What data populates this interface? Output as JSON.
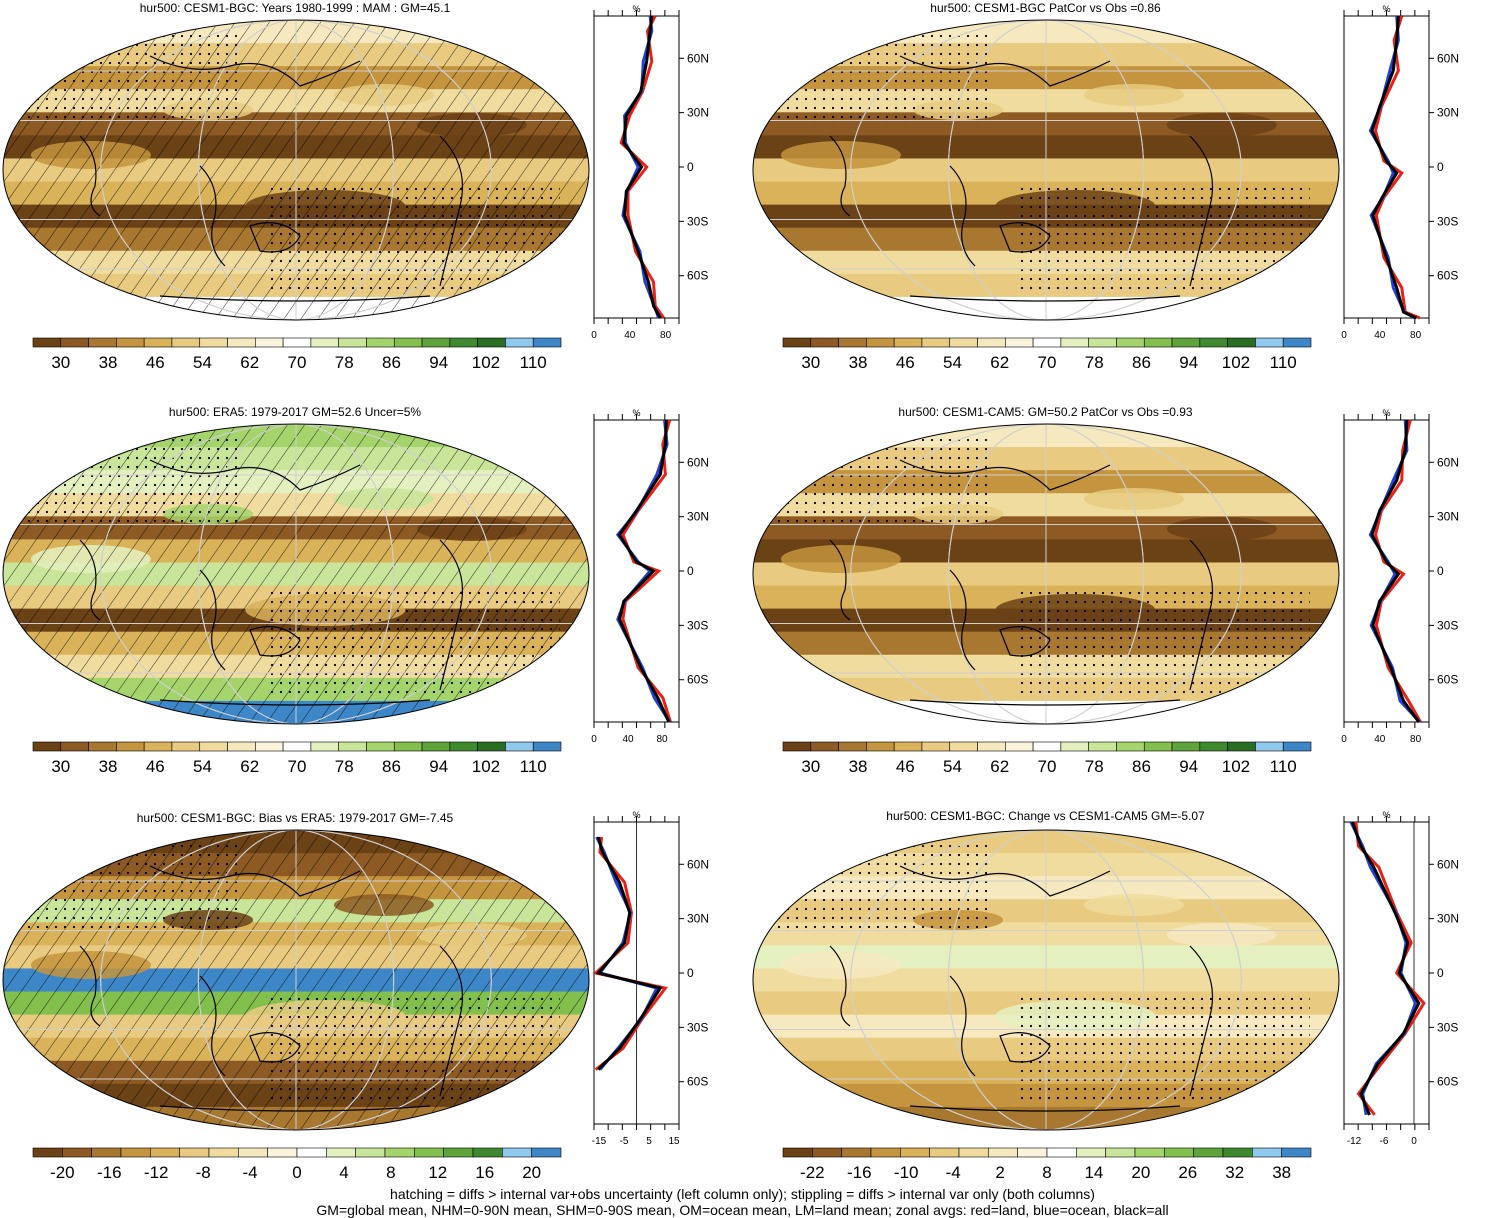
{
  "palettes": {
    "abs": [
      "#6b4116",
      "#8c5a22",
      "#a87730",
      "#c4943e",
      "#d9b25a",
      "#e8cb80",
      "#f0dc9e",
      "#f6e9bf",
      "#fbf4dd",
      "#ffffff",
      "#e4f0c0",
      "#c8e59a",
      "#a6d46c",
      "#82bf4c",
      "#5ea43a",
      "#3f8a2e",
      "#2a6e24",
      "#8fc9ee",
      "#3d86c8"
    ],
    "diff": [
      "#6b4116",
      "#8c5a22",
      "#a87730",
      "#c4943e",
      "#d9b25a",
      "#e8cb80",
      "#f0dc9e",
      "#f6e9bf",
      "#fbf4dd",
      "#ffffff",
      "#e4f0c0",
      "#c8e59a",
      "#a6d46c",
      "#82bf4c",
      "#5ea43a",
      "#3f8a2e",
      "#8fc9ee",
      "#3d86c8"
    ]
  },
  "panels": [
    {
      "id": "p1",
      "title": "hur500: CESM1-BGC: Years 1980-1999 : MAM : GM=45.1",
      "colorbar_labels": [
        "30",
        "38",
        "46",
        "54",
        "62",
        "70",
        "78",
        "86",
        "94",
        "102",
        "110"
      ],
      "zonal": {
        "unit": "%",
        "lat_labels": [
          "60N",
          "30N",
          "0",
          "30S",
          "60S"
        ],
        "x_labels": [
          "0",
          "40",
          "80"
        ],
        "xmin": 0,
        "xmax": 95,
        "zero_line": false
      }
    },
    {
      "id": "p2",
      "title": "hur500: CESM1-BGC PatCor vs Obs =0.86",
      "colorbar_labels": [
        "30",
        "38",
        "46",
        "54",
        "62",
        "70",
        "78",
        "86",
        "94",
        "102",
        "110"
      ],
      "zonal": {
        "unit": "%",
        "lat_labels": [
          "60N",
          "30N",
          "0",
          "30S",
          "60S"
        ],
        "x_labels": [
          "0",
          "40",
          "80"
        ],
        "xmin": 0,
        "xmax": 95,
        "zero_line": false
      }
    },
    {
      "id": "p3",
      "title": "hur500: ERA5: 1979-2017 GM=52.6 Uncer=5%",
      "colorbar_labels": [
        "30",
        "38",
        "46",
        "54",
        "62",
        "70",
        "78",
        "86",
        "94",
        "102",
        "110"
      ],
      "zonal": {
        "unit": "%",
        "lat_labels": [
          "60N",
          "30N",
          "0",
          "30S",
          "60S"
        ],
        "x_labels": [
          "0",
          "40",
          "80"
        ],
        "xmin": 0,
        "xmax": 100,
        "zero_line": false
      }
    },
    {
      "id": "p4",
      "title": "hur500: CESM1-CAM5: GM=50.2 PatCor vs Obs =0.93",
      "colorbar_labels": [
        "30",
        "38",
        "46",
        "54",
        "62",
        "70",
        "78",
        "86",
        "94",
        "102",
        "110"
      ],
      "zonal": {
        "unit": "%",
        "lat_labels": [
          "60N",
          "30N",
          "0",
          "30S",
          "60S"
        ],
        "x_labels": [
          "0",
          "40",
          "80"
        ],
        "xmin": 0,
        "xmax": 95,
        "zero_line": false
      }
    },
    {
      "id": "p5",
      "title": "hur500: CESM1-BGC: Bias vs ERA5: 1979-2017 GM=-7.45",
      "colorbar_labels": [
        "-20",
        "-16",
        "-12",
        "-8",
        "-4",
        "0",
        "4",
        "8",
        "12",
        "16",
        "20"
      ],
      "zonal": {
        "unit": "%",
        "lat_labels": [
          "60N",
          "30N",
          "0",
          "30S",
          "60S"
        ],
        "x_labels": [
          "-15",
          "-5",
          "5",
          "15"
        ],
        "xmin": -17,
        "xmax": 17,
        "zero_line": true
      }
    },
    {
      "id": "p6",
      "title": "hur500: CESM1-BGC: Change vs CESM1-CAM5 GM=-5.07",
      "colorbar_labels": [
        "-22",
        "-16",
        "-10",
        "-4",
        "2",
        "8",
        "14",
        "20",
        "26",
        "32",
        "38"
      ],
      "zonal": {
        "unit": "%",
        "lat_labels": [
          "60N",
          "30N",
          "0",
          "30S",
          "60S"
        ],
        "x_labels": [
          "-12",
          "-6",
          "0"
        ],
        "xmin": -14,
        "xmax": 3,
        "zero_line": true
      }
    }
  ],
  "footer": {
    "line1": "hatching = diffs > internal var+obs uncertainty (left column only); stippling = diffs > internal var only (both columns)",
    "line2": "GM=global mean, NHM=0-90N mean, SHM=0-90S mean, OM=ocean mean, LM=land mean; zonal avgs: red=land, blue=ocean, black=all"
  }
}
